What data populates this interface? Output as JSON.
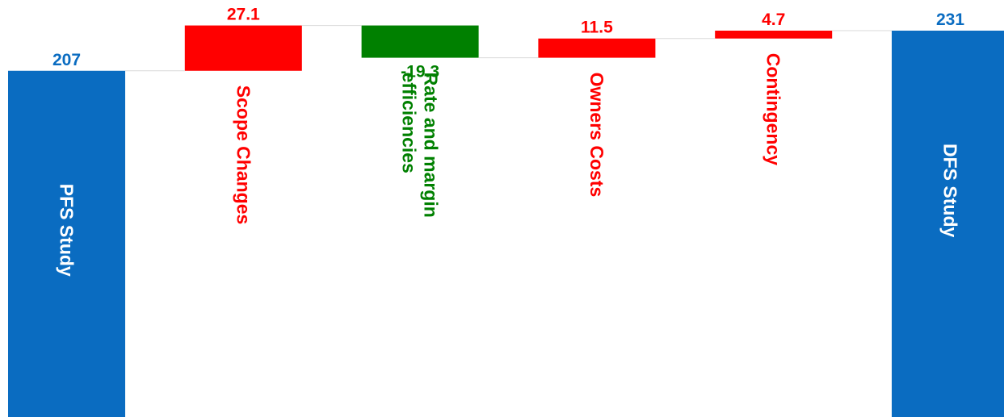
{
  "chart_data": {
    "type": "waterfall",
    "title": "",
    "xlabel": "",
    "ylabel": "",
    "ylim": [
      0,
      231
    ],
    "grid": false,
    "legend": "none",
    "categories": [
      "PFS Study",
      "Scope Changes",
      "Rate and margin efficiencies",
      "Owners Costs",
      "Contingency",
      "DFS Study"
    ],
    "category_lines": [
      [
        "PFS Study"
      ],
      [
        "Scope Changes"
      ],
      [
        "Rate and margin",
        "efficiencies"
      ],
      [
        "Owners Costs"
      ],
      [
        "Contingency"
      ],
      [
        "DFS Study"
      ]
    ],
    "values": [
      207,
      27.1,
      -19.3,
      11.5,
      4.7,
      231
    ],
    "value_labels": [
      "207",
      "27.1",
      "-19.3",
      "11.5",
      "4.7",
      "231"
    ],
    "kinds": [
      "total",
      "delta",
      "delta",
      "delta",
      "delta",
      "total"
    ],
    "colors": {
      "total": "#0a6cc1",
      "increase": "#ff0000",
      "decrease": "#008000",
      "connector": "#d9d9d9",
      "total_label_text": "#ffffff"
    }
  }
}
